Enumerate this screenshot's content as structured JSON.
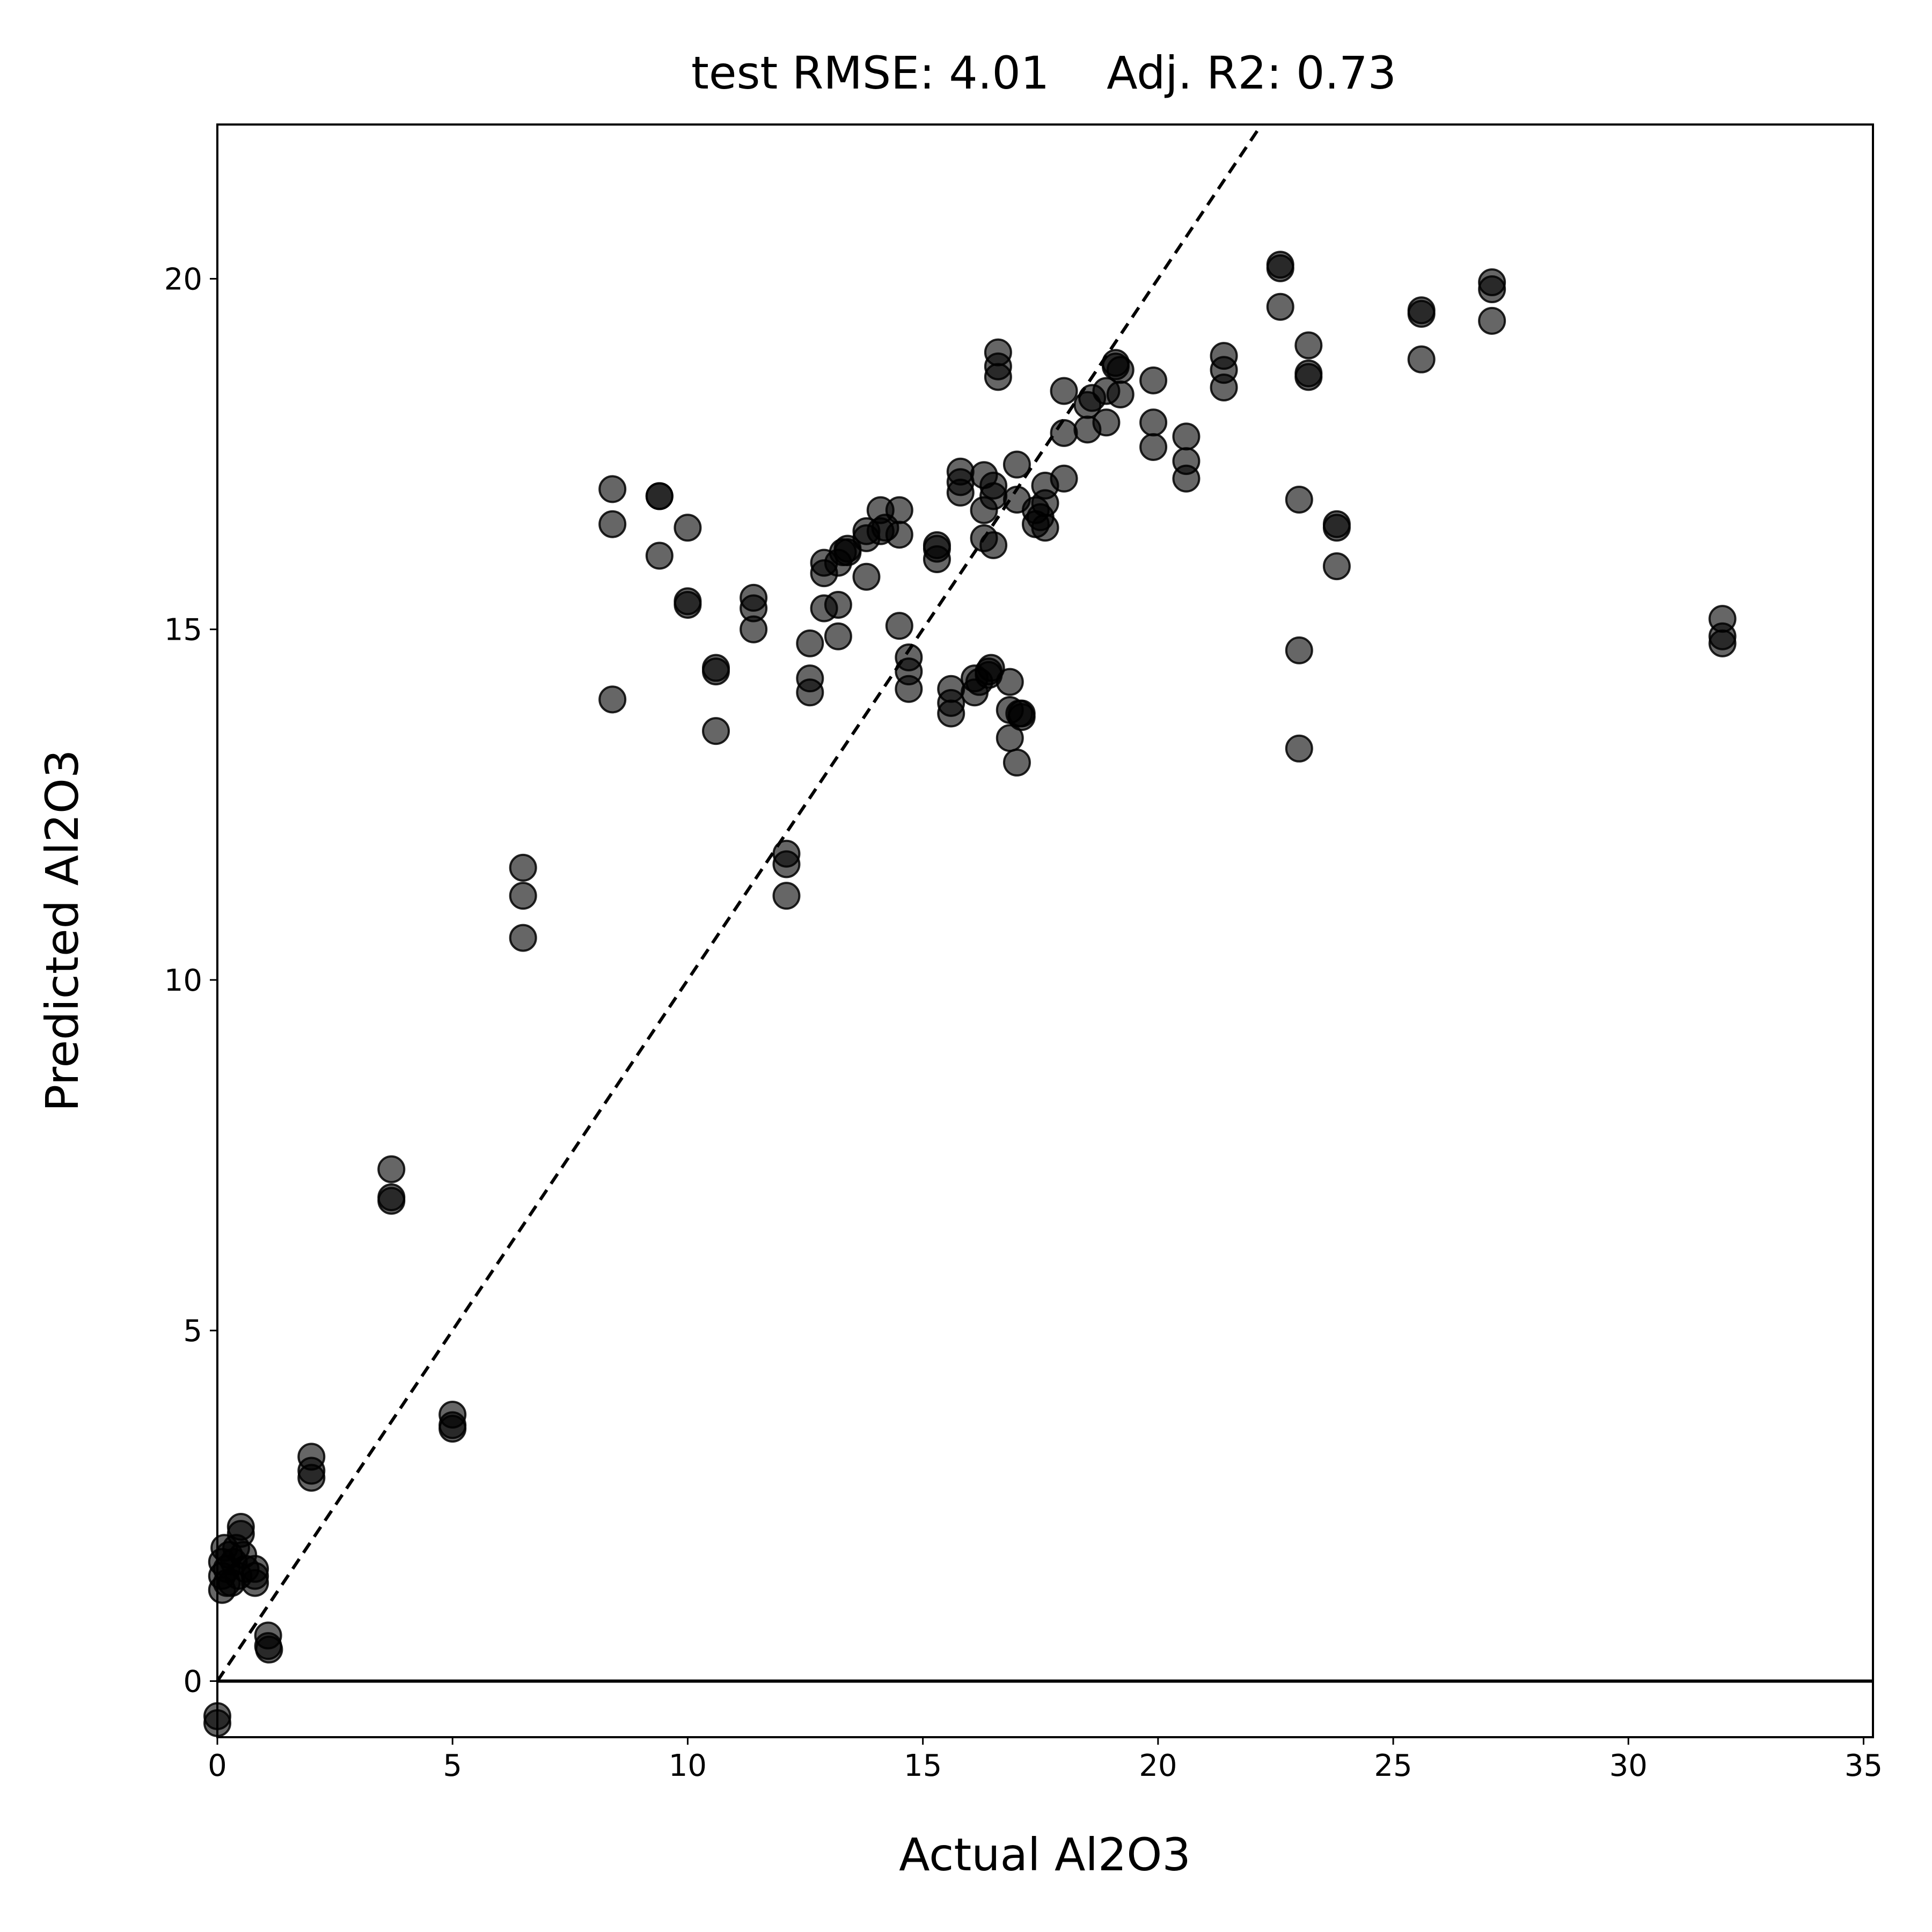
{
  "chart_data": {
    "type": "scatter",
    "title": "test RMSE: 4.01    Adj. R2: 0.73",
    "xlabel": "Actual Al2O3",
    "ylabel": "Predicted Al2O3",
    "xlim": [
      0,
      35.2
    ],
    "ylim": [
      -0.8,
      22.2
    ],
    "xticks": [
      0,
      5,
      10,
      15,
      20,
      25,
      30,
      35
    ],
    "yticks": [
      0,
      5,
      10,
      15,
      20
    ],
    "grid": false,
    "legend": "none",
    "marker_color": "#000000",
    "marker_opacity": 0.6,
    "reference_lines": [
      {
        "kind": "diagonal",
        "style": "dashed",
        "color": "#000000"
      },
      {
        "kind": "horizontal",
        "y": 0,
        "style": "solid",
        "color": "#000000"
      }
    ],
    "points": [
      [
        0.0,
        -0.5
      ],
      [
        0.0,
        -0.6
      ],
      [
        0.1,
        1.3
      ],
      [
        0.1,
        1.5
      ],
      [
        0.1,
        1.7
      ],
      [
        0.15,
        1.9
      ],
      [
        0.2,
        1.4
      ],
      [
        0.2,
        1.6
      ],
      [
        0.25,
        1.8
      ],
      [
        0.3,
        1.4
      ],
      [
        0.35,
        1.7
      ],
      [
        0.4,
        1.9
      ],
      [
        0.45,
        1.5
      ],
      [
        0.5,
        2.1
      ],
      [
        0.5,
        2.2
      ],
      [
        0.55,
        1.8
      ],
      [
        0.6,
        1.6
      ],
      [
        0.8,
        1.4
      ],
      [
        0.8,
        1.6
      ],
      [
        0.8,
        1.5
      ],
      [
        1.08,
        0.65
      ],
      [
        1.08,
        0.5
      ],
      [
        1.1,
        0.45
      ],
      [
        2.0,
        3.2
      ],
      [
        2.0,
        3.0
      ],
      [
        2.0,
        2.9
      ],
      [
        3.7,
        7.3
      ],
      [
        3.7,
        6.9
      ],
      [
        3.7,
        6.85
      ],
      [
        5.0,
        3.8
      ],
      [
        5.0,
        3.65
      ],
      [
        5.0,
        3.6
      ],
      [
        6.5,
        11.6
      ],
      [
        6.5,
        11.2
      ],
      [
        6.5,
        10.6
      ],
      [
        8.4,
        17.0
      ],
      [
        8.4,
        16.5
      ],
      [
        8.4,
        14.0
      ],
      [
        9.4,
        16.9
      ],
      [
        9.4,
        16.9
      ],
      [
        9.4,
        16.05
      ],
      [
        10.0,
        16.45
      ],
      [
        10.0,
        15.4
      ],
      [
        10.0,
        15.35
      ],
      [
        10.6,
        14.45
      ],
      [
        10.6,
        14.4
      ],
      [
        10.6,
        13.55
      ],
      [
        11.4,
        15.45
      ],
      [
        11.4,
        15.3
      ],
      [
        11.4,
        15.0
      ],
      [
        12.1,
        11.8
      ],
      [
        12.1,
        11.65
      ],
      [
        12.1,
        11.2
      ],
      [
        12.6,
        14.8
      ],
      [
        12.6,
        14.3
      ],
      [
        12.6,
        14.1
      ],
      [
        12.9,
        15.95
      ],
      [
        12.9,
        15.8
      ],
      [
        12.9,
        15.3
      ],
      [
        13.2,
        15.95
      ],
      [
        13.2,
        15.35
      ],
      [
        13.2,
        14.9
      ],
      [
        13.3,
        16.1
      ],
      [
        13.4,
        16.15
      ],
      [
        13.4,
        16.1
      ],
      [
        13.8,
        16.4
      ],
      [
        13.8,
        16.3
      ],
      [
        13.8,
        15.75
      ],
      [
        14.1,
        16.7
      ],
      [
        14.1,
        16.4
      ],
      [
        14.2,
        16.45
      ],
      [
        14.5,
        16.7
      ],
      [
        14.5,
        16.35
      ],
      [
        14.5,
        15.05
      ],
      [
        14.7,
        14.6
      ],
      [
        14.7,
        14.4
      ],
      [
        14.7,
        14.15
      ],
      [
        15.3,
        16.2
      ],
      [
        15.3,
        16.15
      ],
      [
        15.3,
        16.0
      ],
      [
        15.6,
        14.15
      ],
      [
        15.6,
        13.95
      ],
      [
        15.6,
        13.8
      ],
      [
        15.8,
        17.25
      ],
      [
        15.8,
        17.1
      ],
      [
        15.8,
        16.95
      ],
      [
        16.1,
        14.3
      ],
      [
        16.1,
        14.1
      ],
      [
        16.2,
        14.25
      ],
      [
        16.3,
        17.2
      ],
      [
        16.3,
        16.7
      ],
      [
        16.3,
        16.3
      ],
      [
        16.4,
        14.4
      ],
      [
        16.4,
        14.35
      ],
      [
        16.45,
        14.45
      ],
      [
        16.5,
        17.05
      ],
      [
        16.5,
        16.9
      ],
      [
        16.5,
        16.2
      ],
      [
        16.6,
        18.95
      ],
      [
        16.6,
        18.75
      ],
      [
        16.6,
        18.6
      ],
      [
        16.85,
        14.25
      ],
      [
        16.85,
        13.85
      ],
      [
        16.85,
        13.45
      ],
      [
        17.0,
        17.35
      ],
      [
        17.0,
        16.85
      ],
      [
        17.0,
        13.1
      ],
      [
        17.05,
        13.8
      ],
      [
        17.1,
        13.75
      ],
      [
        17.1,
        13.8
      ],
      [
        17.4,
        16.7
      ],
      [
        17.4,
        16.5
      ],
      [
        17.5,
        16.6
      ],
      [
        17.6,
        17.05
      ],
      [
        17.6,
        16.8
      ],
      [
        17.6,
        16.45
      ],
      [
        18.0,
        18.4
      ],
      [
        18.0,
        17.8
      ],
      [
        18.0,
        17.15
      ],
      [
        18.5,
        18.2
      ],
      [
        18.5,
        17.85
      ],
      [
        18.6,
        18.3
      ],
      [
        18.9,
        18.4
      ],
      [
        18.9,
        17.95
      ],
      [
        19.1,
        18.75
      ],
      [
        19.1,
        18.8
      ],
      [
        19.2,
        18.7
      ],
      [
        19.2,
        18.35
      ],
      [
        19.9,
        18.55
      ],
      [
        19.9,
        17.95
      ],
      [
        19.9,
        17.6
      ],
      [
        20.6,
        17.75
      ],
      [
        20.6,
        17.4
      ],
      [
        20.6,
        17.15
      ],
      [
        21.4,
        18.9
      ],
      [
        21.4,
        18.7
      ],
      [
        21.4,
        18.45
      ],
      [
        22.6,
        20.2
      ],
      [
        22.6,
        20.15
      ],
      [
        22.6,
        19.6
      ],
      [
        23.0,
        16.85
      ],
      [
        23.0,
        14.7
      ],
      [
        23.0,
        13.3
      ],
      [
        23.2,
        19.05
      ],
      [
        23.2,
        18.65
      ],
      [
        23.2,
        18.6
      ],
      [
        23.8,
        16.5
      ],
      [
        23.8,
        16.45
      ],
      [
        23.8,
        15.9
      ],
      [
        25.6,
        19.55
      ],
      [
        25.6,
        19.5
      ],
      [
        25.6,
        18.85
      ],
      [
        27.1,
        19.95
      ],
      [
        27.1,
        19.85
      ],
      [
        27.1,
        19.4
      ],
      [
        32.0,
        15.15
      ],
      [
        32.0,
        14.9
      ],
      [
        32.0,
        14.8
      ]
    ]
  }
}
